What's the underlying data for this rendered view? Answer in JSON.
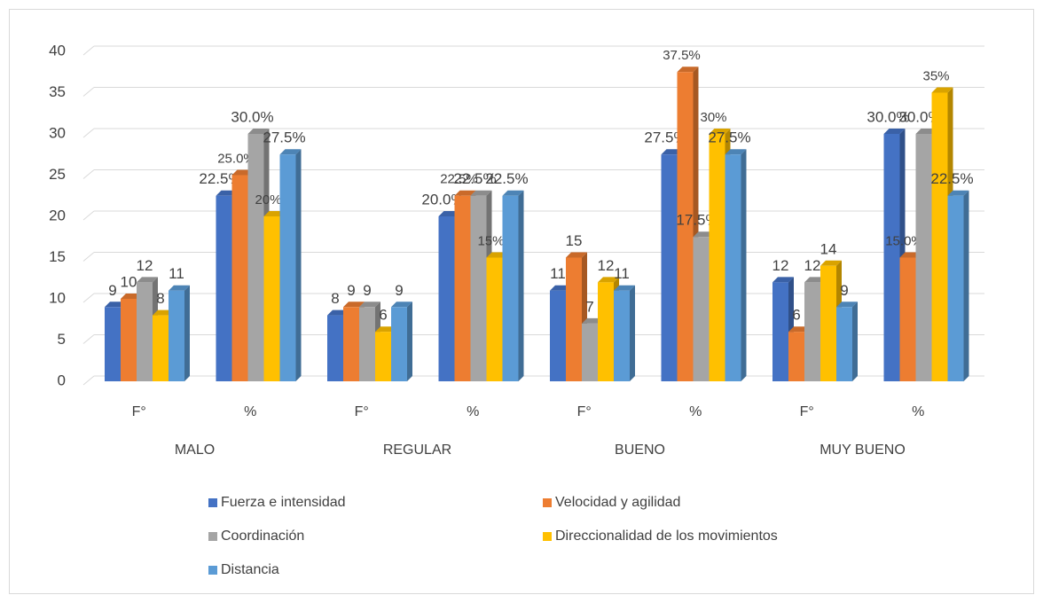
{
  "chart_data": {
    "type": "bar3d",
    "categories": [
      "F°",
      "%",
      "F°",
      "%",
      "F°",
      "%",
      "F°",
      "%"
    ],
    "groups": [
      "MALO",
      "REGULAR",
      "BUENO",
      "MUY BUENO"
    ],
    "ylim": [
      0,
      40
    ],
    "yticks": [
      0,
      5,
      10,
      15,
      20,
      25,
      30,
      35,
      40
    ],
    "grid": true,
    "legend": "bottom",
    "series": [
      {
        "name": "Fuerza e intensidad",
        "color": "#4472c4",
        "values": [
          9,
          22.5,
          8,
          20,
          11,
          27.5,
          12,
          30
        ],
        "value_labels": [
          "9",
          "22.5%",
          "8",
          "20.0%",
          "11",
          "27.5%",
          "12",
          "30.0%"
        ]
      },
      {
        "name": "Velocidad y agilidad",
        "color": "#ed7d31",
        "values": [
          10,
          25,
          9,
          22.5,
          15,
          37.5,
          6,
          15
        ],
        "value_labels": [
          "10",
          "25.0%",
          "9",
          "22.5%",
          "15",
          "37.5%",
          "6",
          "15.0%"
        ]
      },
      {
        "name": "Coordinación",
        "color": "#a5a5a5",
        "values": [
          12,
          30,
          9,
          22.5,
          7,
          17.5,
          12,
          30
        ],
        "value_labels": [
          "12",
          "30.0%",
          "9",
          "22.5%",
          "7",
          "17.5%",
          "12",
          "30.0%"
        ]
      },
      {
        "name": "Direccionalidad de los movimientos",
        "color": "#ffc000",
        "values": [
          8,
          20,
          6,
          15,
          12,
          30,
          14,
          35
        ],
        "value_labels": [
          "8",
          "20%",
          "6",
          "15%",
          "12",
          "30%",
          "14",
          "35%"
        ]
      },
      {
        "name": "Distancia",
        "color": "#5b9bd5",
        "values": [
          11,
          27.5,
          9,
          22.5,
          11,
          27.5,
          9,
          22.5
        ],
        "value_labels": [
          "11",
          "27.5%",
          "9",
          "22.5%",
          "11",
          "27.5%",
          "9",
          "22.5%"
        ]
      }
    ]
  }
}
